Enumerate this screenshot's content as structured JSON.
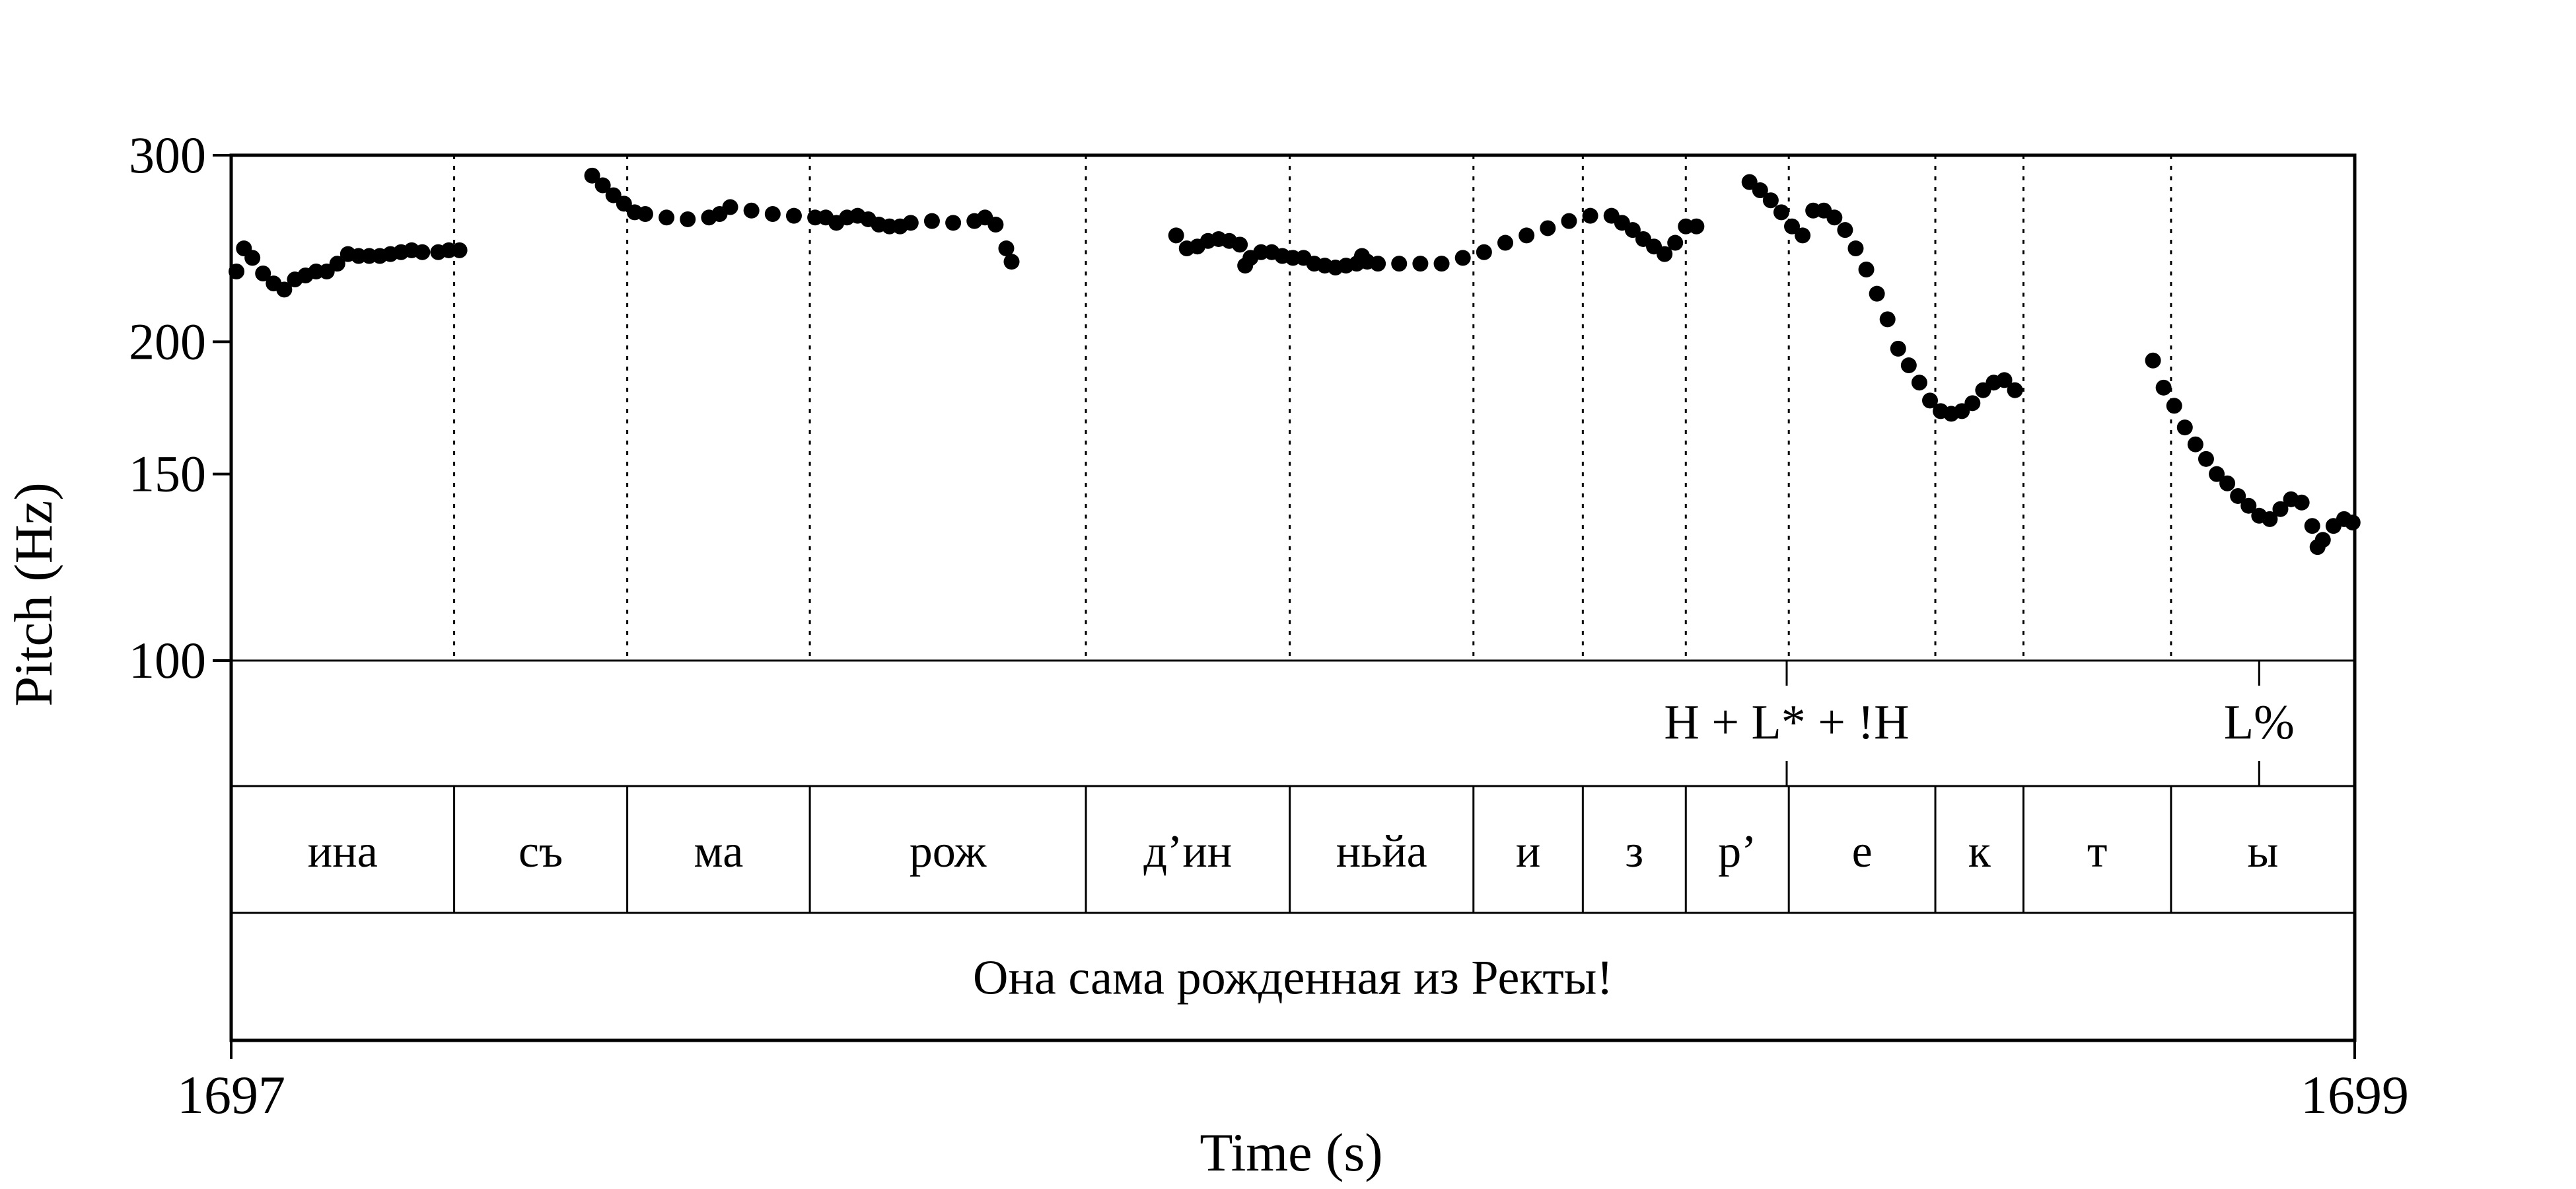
{
  "chart_data": {
    "type": "scatter",
    "xlabel": "Time (s)",
    "ylabel": "Pitch (Hz)",
    "xlim": [
      1697,
      1699
    ],
    "ylim": [
      100,
      300
    ],
    "y_scale": "log",
    "x_tick_labels": [
      "1697",
      "1699"
    ],
    "y_ticks": [
      100,
      150,
      200,
      300
    ],
    "y_tick_labels": [
      "100",
      "150",
      "200",
      "300"
    ],
    "series": [
      {
        "values": [
          [
            1697.005,
            233
          ],
          [
            1697.012,
            245
          ],
          [
            1697.02,
            240
          ],
          [
            1697.03,
            232
          ],
          [
            1697.04,
            227
          ],
          [
            1697.05,
            224
          ],
          [
            1697.06,
            229
          ],
          [
            1697.07,
            231
          ],
          [
            1697.08,
            233
          ],
          [
            1697.09,
            233
          ],
          [
            1697.1,
            237
          ],
          [
            1697.11,
            242
          ],
          [
            1697.12,
            241
          ],
          [
            1697.13,
            241
          ],
          [
            1697.14,
            241
          ],
          [
            1697.15,
            242
          ],
          [
            1697.16,
            243
          ],
          [
            1697.17,
            244
          ],
          [
            1697.18,
            243
          ],
          [
            1697.195,
            243
          ],
          [
            1697.205,
            244
          ],
          [
            1697.215,
            244
          ],
          [
            1697.34,
            287
          ],
          [
            1697.35,
            281
          ],
          [
            1697.36,
            275
          ],
          [
            1697.37,
            270
          ],
          [
            1697.38,
            265
          ],
          [
            1697.39,
            264
          ],
          [
            1697.41,
            262
          ],
          [
            1697.43,
            261
          ],
          [
            1697.45,
            262
          ],
          [
            1697.46,
            264
          ],
          [
            1697.47,
            268
          ],
          [
            1697.49,
            266
          ],
          [
            1697.51,
            264
          ],
          [
            1697.53,
            263
          ],
          [
            1697.55,
            262
          ],
          [
            1697.56,
            262
          ],
          [
            1697.57,
            259
          ],
          [
            1697.58,
            262
          ],
          [
            1697.59,
            263
          ],
          [
            1697.6,
            261
          ],
          [
            1697.61,
            258
          ],
          [
            1697.62,
            257
          ],
          [
            1697.63,
            257
          ],
          [
            1697.64,
            259
          ],
          [
            1697.66,
            260
          ],
          [
            1697.68,
            259
          ],
          [
            1697.7,
            260
          ],
          [
            1697.71,
            262
          ],
          [
            1697.72,
            258
          ],
          [
            1697.73,
            245
          ],
          [
            1697.735,
            238
          ],
          [
            1697.89,
            252
          ],
          [
            1697.9,
            245
          ],
          [
            1697.91,
            246
          ],
          [
            1697.92,
            249
          ],
          [
            1697.93,
            250
          ],
          [
            1697.94,
            249
          ],
          [
            1697.95,
            247
          ],
          [
            1697.955,
            236
          ],
          [
            1697.96,
            240
          ],
          [
            1697.97,
            243
          ],
          [
            1697.98,
            243
          ],
          [
            1697.99,
            241
          ],
          [
            1698.0,
            240
          ],
          [
            1698.01,
            240
          ],
          [
            1698.02,
            237
          ],
          [
            1698.03,
            236
          ],
          [
            1698.04,
            235
          ],
          [
            1698.05,
            236
          ],
          [
            1698.06,
            237
          ],
          [
            1698.065,
            241
          ],
          [
            1698.07,
            238
          ],
          [
            1698.08,
            237
          ],
          [
            1698.1,
            237
          ],
          [
            1698.12,
            237
          ],
          [
            1698.14,
            237
          ],
          [
            1698.16,
            240
          ],
          [
            1698.18,
            243
          ],
          [
            1698.2,
            248
          ],
          [
            1698.22,
            252
          ],
          [
            1698.24,
            256
          ],
          [
            1698.26,
            260
          ],
          [
            1698.28,
            263
          ],
          [
            1698.3,
            263
          ],
          [
            1698.31,
            259
          ],
          [
            1698.32,
            255
          ],
          [
            1698.33,
            250
          ],
          [
            1698.34,
            246
          ],
          [
            1698.35,
            242
          ],
          [
            1698.36,
            248
          ],
          [
            1698.37,
            257
          ],
          [
            1698.38,
            257
          ],
          [
            1698.43,
            283
          ],
          [
            1698.44,
            278
          ],
          [
            1698.45,
            272
          ],
          [
            1698.46,
            265
          ],
          [
            1698.47,
            257
          ],
          [
            1698.48,
            252
          ],
          [
            1698.49,
            266
          ],
          [
            1698.5,
            266
          ],
          [
            1698.51,
            262
          ],
          [
            1698.52,
            255
          ],
          [
            1698.53,
            245
          ],
          [
            1698.54,
            234
          ],
          [
            1698.55,
            222
          ],
          [
            1698.56,
            210
          ],
          [
            1698.57,
            197
          ],
          [
            1698.58,
            190
          ],
          [
            1698.59,
            183
          ],
          [
            1698.6,
            176
          ],
          [
            1698.61,
            172
          ],
          [
            1698.62,
            171
          ],
          [
            1698.63,
            172
          ],
          [
            1698.64,
            175
          ],
          [
            1698.65,
            180
          ],
          [
            1698.66,
            183
          ],
          [
            1698.67,
            184
          ],
          [
            1698.68,
            180
          ],
          [
            1698.81,
            192
          ],
          [
            1698.82,
            181
          ],
          [
            1698.83,
            174
          ],
          [
            1698.84,
            166
          ],
          [
            1698.85,
            160
          ],
          [
            1698.86,
            155
          ],
          [
            1698.87,
            150
          ],
          [
            1698.88,
            147
          ],
          [
            1698.89,
            143
          ],
          [
            1698.9,
            140
          ],
          [
            1698.91,
            137
          ],
          [
            1698.92,
            136
          ],
          [
            1698.93,
            139
          ],
          [
            1698.94,
            142
          ],
          [
            1698.95,
            141
          ],
          [
            1698.96,
            134
          ],
          [
            1698.965,
            128
          ],
          [
            1698.97,
            130
          ],
          [
            1698.98,
            134
          ],
          [
            1698.99,
            136
          ],
          [
            1698.998,
            135
          ]
        ]
      }
    ]
  },
  "tone_tier": [
    {
      "text": "H + L* + !H",
      "time": 1698.465
    },
    {
      "text": "L%",
      "time": 1698.91
    }
  ],
  "segment_tier": [
    {
      "text": "ина"
    },
    {
      "text": "съ"
    },
    {
      "text": "ма"
    },
    {
      "text": "рож"
    },
    {
      "text": "д’ин"
    },
    {
      "text": "ньйа"
    },
    {
      "text": "и"
    },
    {
      "text": "з"
    },
    {
      "text": "р’"
    },
    {
      "text": "е"
    },
    {
      "text": "к"
    },
    {
      "text": "т"
    },
    {
      "text": "ы"
    }
  ],
  "segment_boundaries": [
    1697.21,
    1697.373,
    1697.545,
    1697.805,
    1697.997,
    1698.17,
    1698.273,
    1698.37,
    1698.467,
    1698.605,
    1698.688,
    1698.827
  ],
  "sentence_tier": "Она сама рожденная из Ректы!"
}
